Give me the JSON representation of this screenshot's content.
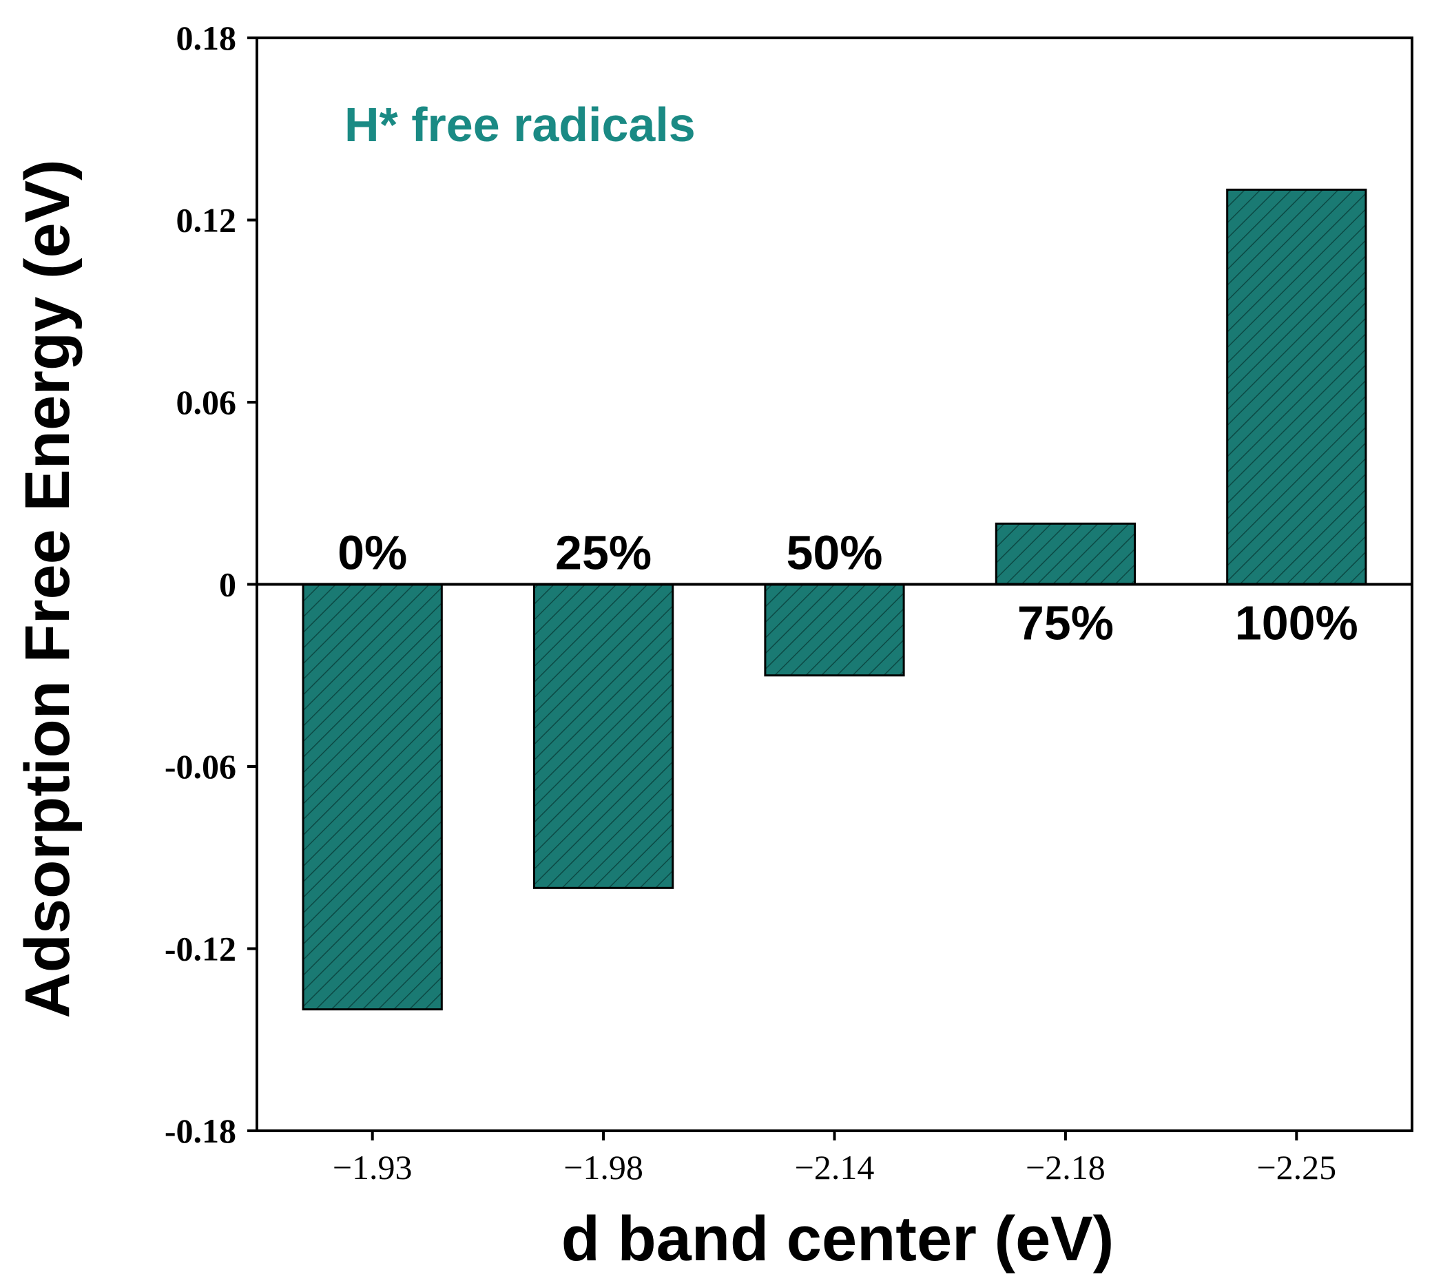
{
  "chart_data": {
    "type": "bar",
    "title": "",
    "xlabel": "d band center (eV)",
    "ylabel": "Adsorption Free Energy (eV)",
    "ylim": [
      -0.18,
      0.18
    ],
    "yticks": [
      "0.18",
      "0.12",
      "0.06",
      "0",
      "-0.06",
      "-0.12",
      "-0.18"
    ],
    "ytick_values": [
      0.18,
      0.12,
      0.06,
      0,
      -0.06,
      -0.12,
      -0.18
    ],
    "categories": [
      "−1.93",
      "−1.98",
      "−2.14",
      "−2.18",
      "−2.25"
    ],
    "values": [
      -0.14,
      -0.1,
      -0.03,
      0.02,
      0.13
    ],
    "bar_labels": [
      "0%",
      "25%",
      "50%",
      "75%",
      "100%"
    ],
    "annotation": "H* free radicals",
    "grid": false,
    "colors": {
      "bar_fill": "#1a7a73",
      "bar_hatch": "#0c4a45",
      "annotation": "#1a8a84",
      "axis": "#000000"
    }
  }
}
